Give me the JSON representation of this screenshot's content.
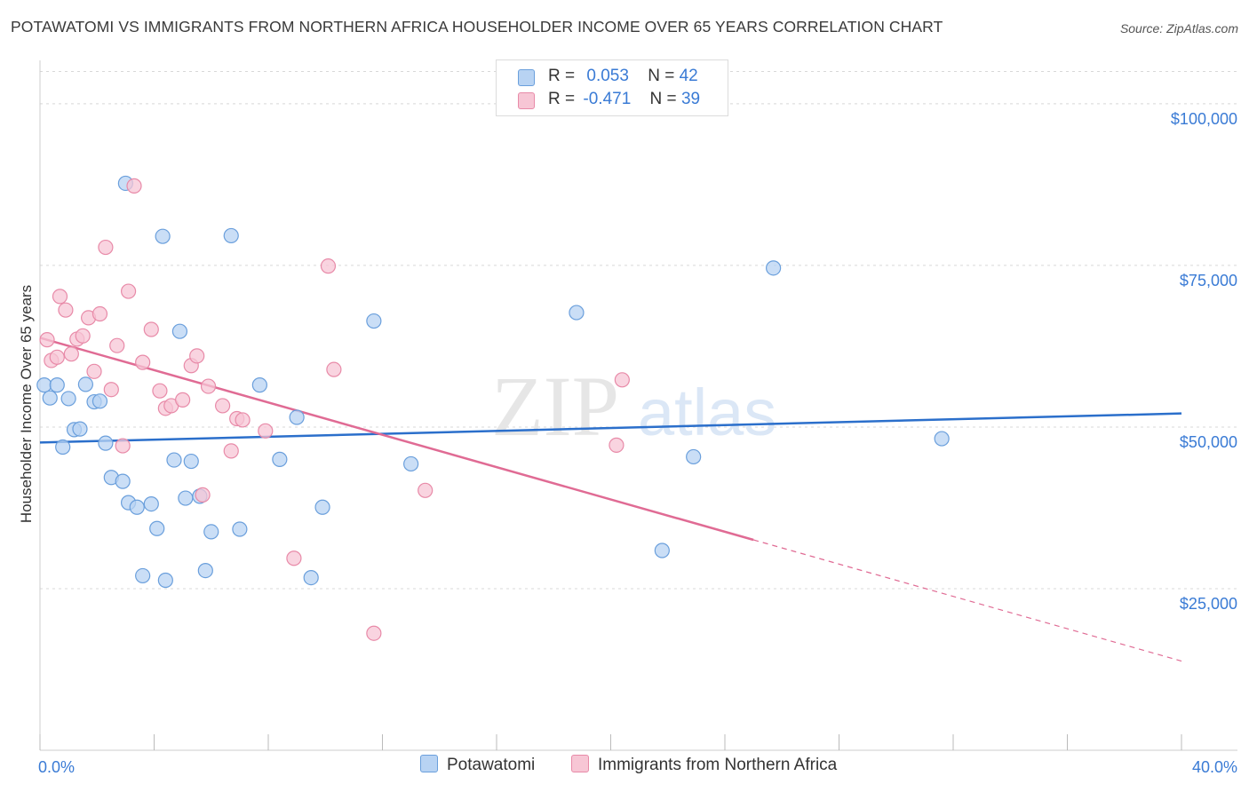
{
  "title": "POTAWATOMI VS IMMIGRANTS FROM NORTHERN AFRICA HOUSEHOLDER INCOME OVER 65 YEARS CORRELATION CHART",
  "source": "Source: ZipAtlas.com",
  "watermark": {
    "zip": "ZIP",
    "atlas": "atlas"
  },
  "colors": {
    "blue_fill": "#b8d3f3",
    "blue_stroke": "#6a9fdc",
    "blue_line": "#2b6fcb",
    "pink_fill": "#f7c6d5",
    "pink_stroke": "#e88aa8",
    "pink_line": "#e06b94",
    "axis_text": "#3a7bd5",
    "grid": "#d8d8d8"
  },
  "legend": {
    "rows": [
      {
        "r_label": "R =",
        "r_value": "0.053",
        "n_label": "N =",
        "n_value": "42"
      },
      {
        "r_label": "R =",
        "r_value": "-0.471",
        "n_label": "N =",
        "n_value": "39"
      }
    ]
  },
  "bottom_legend": {
    "series1": "Potawatomi",
    "series2": "Immigrants from Northern Africa"
  },
  "chart_data": {
    "type": "scatter",
    "title": "POTAWATOMI VS IMMIGRANTS FROM NORTHERN AFRICA HOUSEHOLDER INCOME OVER 65 YEARS CORRELATION CHART",
    "xlabel": "",
    "ylabel": "Householder Income Over 65 years",
    "xlim": [
      0,
      40
    ],
    "ylim": [
      0,
      105000
    ],
    "x_tick_labels": [
      "0.0%",
      "40.0%"
    ],
    "y_ticks": [
      25000,
      50000,
      75000,
      100000
    ],
    "y_tick_labels": [
      "$25,000",
      "$50,000",
      "$75,000",
      "$100,000"
    ],
    "legend_position": "top-center",
    "series": [
      {
        "name": "Potawatomi",
        "r": 0.053,
        "n": 42,
        "trend": {
          "x0": 0,
          "y0": 47600,
          "x1": 40,
          "y1": 52100,
          "dashed_from_x": null
        },
        "points": [
          [
            0.15,
            56500
          ],
          [
            0.35,
            54500
          ],
          [
            0.6,
            56500
          ],
          [
            0.8,
            46900
          ],
          [
            1.0,
            54400
          ],
          [
            1.2,
            49600
          ],
          [
            1.4,
            49700
          ],
          [
            1.6,
            56600
          ],
          [
            1.9,
            53900
          ],
          [
            2.1,
            54000
          ],
          [
            2.3,
            47500
          ],
          [
            2.5,
            42200
          ],
          [
            2.9,
            41600
          ],
          [
            3.1,
            38300
          ],
          [
            3.4,
            37600
          ],
          [
            3.6,
            27000
          ],
          [
            3.9,
            38100
          ],
          [
            4.1,
            34300
          ],
          [
            4.3,
            79500
          ],
          [
            4.4,
            26300
          ],
          [
            4.7,
            44900
          ],
          [
            4.9,
            64800
          ],
          [
            5.1,
            39000
          ],
          [
            5.3,
            44700
          ],
          [
            5.6,
            39300
          ],
          [
            5.8,
            27800
          ],
          [
            6.0,
            33800
          ],
          [
            3.0,
            87700
          ],
          [
            6.7,
            79600
          ],
          [
            7.0,
            34200
          ],
          [
            7.7,
            56500
          ],
          [
            8.4,
            45000
          ],
          [
            9.0,
            51500
          ],
          [
            9.5,
            26700
          ],
          [
            9.9,
            37600
          ],
          [
            11.7,
            66400
          ],
          [
            13.0,
            44300
          ],
          [
            18.8,
            67700
          ],
          [
            21.8,
            30900
          ],
          [
            22.9,
            45400
          ],
          [
            25.7,
            74600
          ],
          [
            31.6,
            48200
          ]
        ]
      },
      {
        "name": "Immigrants from Northern Africa",
        "r": -0.471,
        "n": 39,
        "trend": {
          "x0": 0,
          "y0": 63800,
          "x1": 40,
          "y1": 13800,
          "dashed_from_x": 25.0
        },
        "points": [
          [
            0.25,
            63500
          ],
          [
            0.4,
            60300
          ],
          [
            0.6,
            60800
          ],
          [
            0.7,
            70200
          ],
          [
            0.9,
            68100
          ],
          [
            1.1,
            61300
          ],
          [
            1.3,
            63600
          ],
          [
            1.5,
            64100
          ],
          [
            1.7,
            66900
          ],
          [
            1.9,
            58600
          ],
          [
            2.1,
            67500
          ],
          [
            2.3,
            77800
          ],
          [
            2.5,
            55800
          ],
          [
            2.7,
            62600
          ],
          [
            2.9,
            47100
          ],
          [
            3.1,
            71000
          ],
          [
            3.3,
            87300
          ],
          [
            3.6,
            60000
          ],
          [
            3.9,
            65100
          ],
          [
            4.2,
            55600
          ],
          [
            4.4,
            52900
          ],
          [
            4.6,
            53300
          ],
          [
            5.0,
            54200
          ],
          [
            5.3,
            59500
          ],
          [
            5.5,
            61000
          ],
          [
            5.7,
            39500
          ],
          [
            5.9,
            56300
          ],
          [
            6.4,
            53300
          ],
          [
            6.7,
            46300
          ],
          [
            6.9,
            51300
          ],
          [
            7.1,
            51100
          ],
          [
            7.9,
            49400
          ],
          [
            8.9,
            29700
          ],
          [
            10.1,
            74900
          ],
          [
            10.3,
            58900
          ],
          [
            11.7,
            18100
          ],
          [
            13.5,
            40200
          ],
          [
            20.2,
            47200
          ],
          [
            20.4,
            57300
          ]
        ]
      }
    ]
  }
}
